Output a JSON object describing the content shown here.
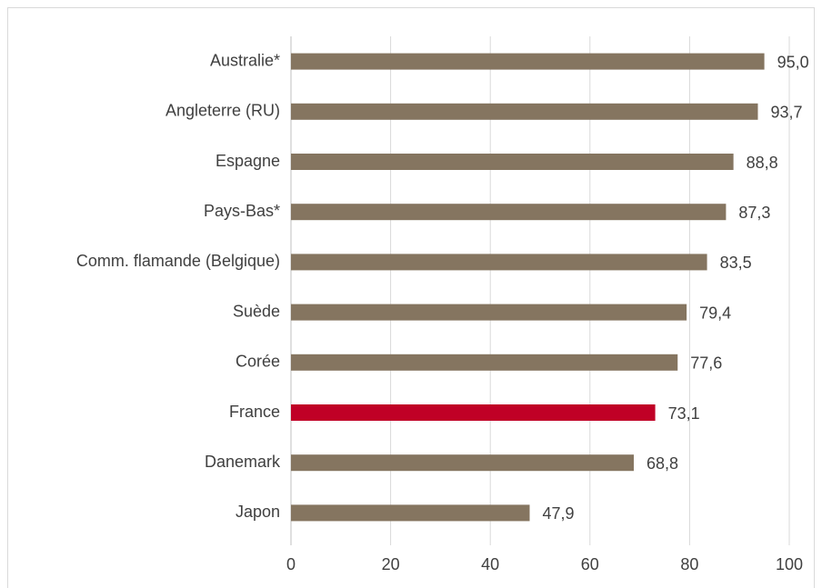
{
  "chart_data": {
    "type": "hbar",
    "categories": [
      "Australie*",
      "Angleterre (RU)",
      "Espagne",
      "Pays-Bas*",
      "Comm. flamande (Belgique)",
      "Suède",
      "Corée",
      "France",
      "Danemark",
      "Japon"
    ],
    "values": [
      95.0,
      93.7,
      88.8,
      87.3,
      83.5,
      79.4,
      77.6,
      73.1,
      68.8,
      47.9
    ],
    "value_labels": [
      "95,0",
      "93,7",
      "88,8",
      "87,3",
      "83,5",
      "79,4",
      "77,6",
      "73,1",
      "68,8",
      "47,9"
    ],
    "colors": [
      "#857560",
      "#857560",
      "#857560",
      "#857560",
      "#857560",
      "#857560",
      "#857560",
      "#c00026",
      "#857560",
      "#857560"
    ],
    "xlim": [
      0,
      100
    ],
    "xticks": [
      0,
      20,
      40,
      60,
      80,
      100
    ],
    "grid": true
  }
}
